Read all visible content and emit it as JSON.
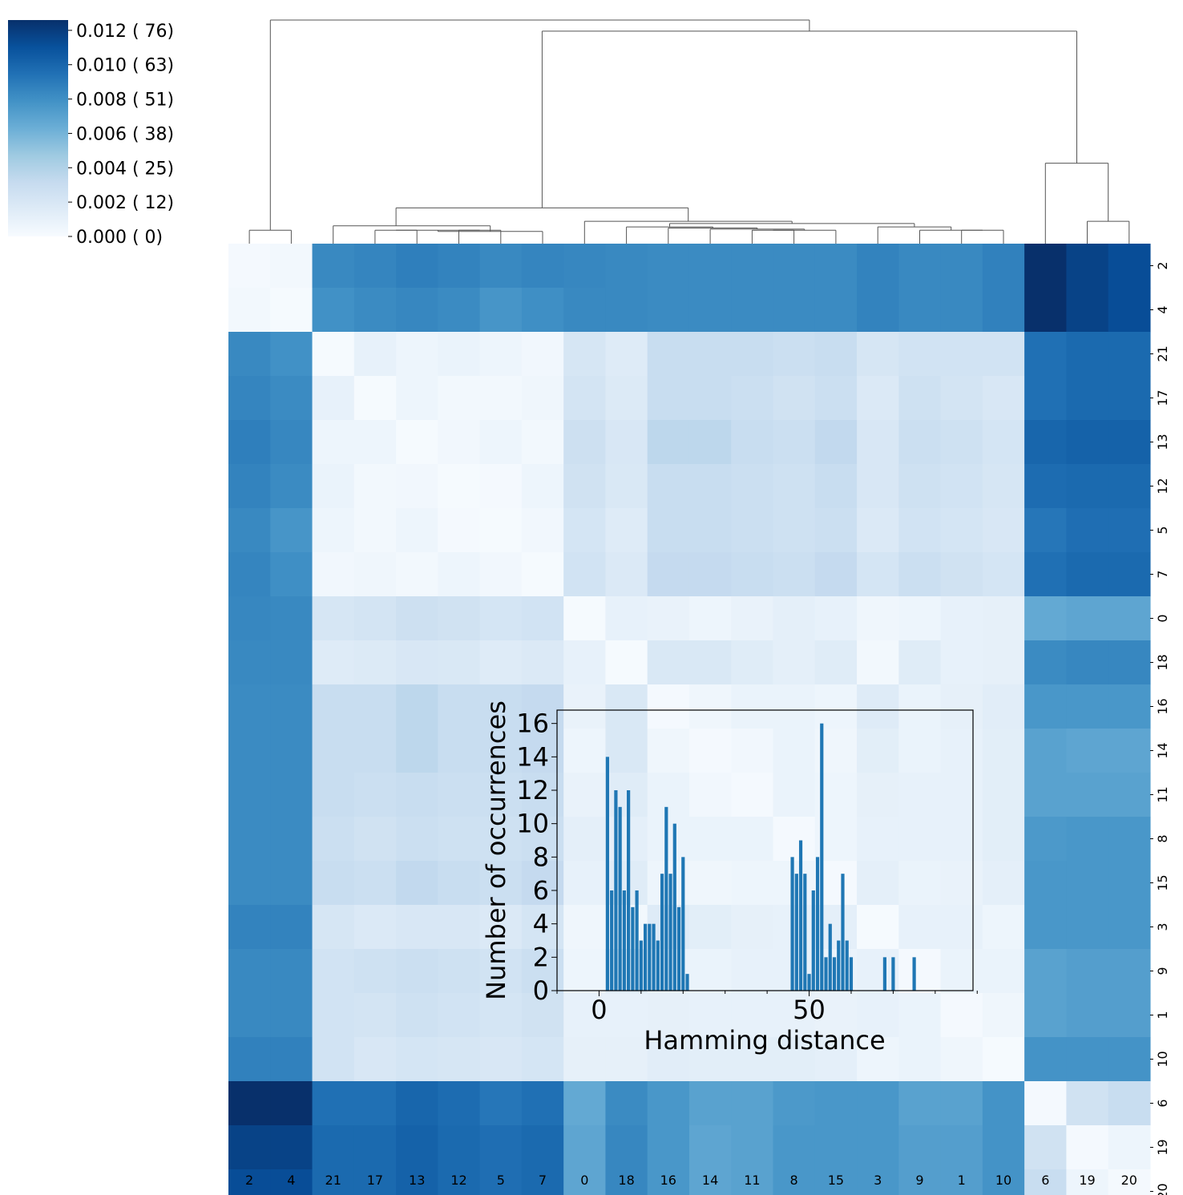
{
  "chart_data": [
    {
      "type": "heatmap",
      "row_labels": [
        "2",
        "4",
        "21",
        "17",
        "13",
        "12",
        "5",
        "7",
        "0",
        "18",
        "16",
        "14",
        "11",
        "8",
        "15",
        "3",
        "9",
        "1",
        "10",
        "6",
        "19",
        "20"
      ],
      "col_labels": [
        "2",
        "4",
        "21",
        "17",
        "13",
        "12",
        "5",
        "7",
        "0",
        "18",
        "16",
        "14",
        "11",
        "8",
        "15",
        "3",
        "9",
        "1",
        "10",
        "6",
        "19",
        "20"
      ],
      "colormap": "Blues",
      "colorbar": {
        "range": [
          0,
          0.0126
        ],
        "tick_values": [
          0,
          0.002,
          0.004,
          0.006,
          0.008,
          0.01,
          0.012
        ],
        "tick_labels": [
          "0.000 (  0)",
          "0.002 ( 12)",
          "0.004 ( 25)",
          "0.006 ( 38)",
          "0.008 ( 51)",
          "0.010 ( 63)",
          "0.012 ( 76)"
        ]
      },
      "dendrogram": "top",
      "values": [
        [
          0.0002,
          0.0003,
          0.0083,
          0.0085,
          0.0088,
          0.0086,
          0.0083,
          0.0085,
          0.0084,
          0.0083,
          0.0082,
          0.0082,
          0.0082,
          0.0082,
          0.0082,
          0.0086,
          0.0083,
          0.0083,
          0.0087,
          0.0126,
          0.0117,
          0.0112
        ],
        [
          0.0003,
          0.0001,
          0.0079,
          0.0082,
          0.0084,
          0.0082,
          0.0077,
          0.008,
          0.0083,
          0.0083,
          0.0082,
          0.0082,
          0.0082,
          0.0082,
          0.0082,
          0.0086,
          0.0083,
          0.0083,
          0.0087,
          0.0126,
          0.0117,
          0.0112
        ],
        [
          0.0083,
          0.0079,
          0.0001,
          0.001,
          0.0006,
          0.0008,
          0.0006,
          0.0004,
          0.0021,
          0.0016,
          0.003,
          0.003,
          0.003,
          0.0028,
          0.003,
          0.0021,
          0.0024,
          0.0024,
          0.0024,
          0.0095,
          0.0098,
          0.0098
        ],
        [
          0.0085,
          0.0082,
          0.001,
          0.0001,
          0.0006,
          0.0003,
          0.0003,
          0.0005,
          0.0023,
          0.0017,
          0.003,
          0.003,
          0.0028,
          0.0025,
          0.0028,
          0.0018,
          0.0026,
          0.0023,
          0.002,
          0.0095,
          0.0098,
          0.0098
        ],
        [
          0.0088,
          0.0084,
          0.0006,
          0.0006,
          0.0001,
          0.0004,
          0.0006,
          0.0003,
          0.0027,
          0.002,
          0.0035,
          0.0035,
          0.003,
          0.0028,
          0.0033,
          0.002,
          0.0028,
          0.0026,
          0.0022,
          0.01,
          0.0102,
          0.0102
        ],
        [
          0.0086,
          0.0082,
          0.0008,
          0.0003,
          0.0004,
          0.0001,
          0.0002,
          0.0006,
          0.0025,
          0.0019,
          0.003,
          0.003,
          0.0028,
          0.0026,
          0.003,
          0.002,
          0.0026,
          0.0024,
          0.0021,
          0.0097,
          0.0098,
          0.0098
        ],
        [
          0.0083,
          0.0077,
          0.0006,
          0.0003,
          0.0006,
          0.0002,
          0.0001,
          0.0004,
          0.0022,
          0.0016,
          0.003,
          0.003,
          0.0028,
          0.0026,
          0.0028,
          0.0018,
          0.0024,
          0.0022,
          0.002,
          0.0092,
          0.0096,
          0.0096
        ],
        [
          0.0085,
          0.008,
          0.0004,
          0.0005,
          0.0003,
          0.0006,
          0.0004,
          0.0001,
          0.0024,
          0.0018,
          0.0032,
          0.0032,
          0.003,
          0.0028,
          0.0032,
          0.0022,
          0.0028,
          0.0025,
          0.0022,
          0.0095,
          0.0098,
          0.0098
        ],
        [
          0.0084,
          0.0083,
          0.0021,
          0.0023,
          0.0027,
          0.0025,
          0.0022,
          0.0024,
          0.0001,
          0.001,
          0.0009,
          0.0006,
          0.0009,
          0.0012,
          0.001,
          0.0005,
          0.0006,
          0.001,
          0.0011,
          0.0066,
          0.0068,
          0.0068
        ],
        [
          0.0083,
          0.0083,
          0.0016,
          0.0017,
          0.002,
          0.0019,
          0.0016,
          0.0018,
          0.001,
          0.0001,
          0.0019,
          0.0019,
          0.0015,
          0.0012,
          0.0015,
          0.0003,
          0.0015,
          0.001,
          0.0011,
          0.0082,
          0.0084,
          0.0084
        ],
        [
          0.0082,
          0.0082,
          0.003,
          0.003,
          0.0035,
          0.003,
          0.003,
          0.0032,
          0.0009,
          0.0019,
          0.0002,
          0.0005,
          0.0008,
          0.0008,
          0.0006,
          0.0016,
          0.0008,
          0.0011,
          0.0014,
          0.0076,
          0.0076,
          0.0076
        ],
        [
          0.0082,
          0.0082,
          0.003,
          0.003,
          0.0035,
          0.003,
          0.003,
          0.0032,
          0.0006,
          0.0019,
          0.0005,
          0.0002,
          0.0004,
          0.0008,
          0.0005,
          0.0013,
          0.0008,
          0.001,
          0.0013,
          0.007,
          0.0068,
          0.0068
        ],
        [
          0.0082,
          0.0082,
          0.003,
          0.0028,
          0.003,
          0.0028,
          0.0028,
          0.003,
          0.0009,
          0.0015,
          0.0008,
          0.0004,
          0.0002,
          0.0008,
          0.0006,
          0.0011,
          0.001,
          0.001,
          0.0013,
          0.007,
          0.007,
          0.007
        ],
        [
          0.0082,
          0.0082,
          0.0028,
          0.0025,
          0.0028,
          0.0026,
          0.0026,
          0.0028,
          0.0012,
          0.0012,
          0.0008,
          0.0008,
          0.0008,
          0.0002,
          0.0006,
          0.001,
          0.001,
          0.001,
          0.0013,
          0.0075,
          0.0076,
          0.0076
        ],
        [
          0.0082,
          0.0082,
          0.003,
          0.0028,
          0.0033,
          0.003,
          0.0028,
          0.0032,
          0.001,
          0.0015,
          0.0006,
          0.0005,
          0.0006,
          0.0006,
          0.0002,
          0.0012,
          0.0008,
          0.0009,
          0.0012,
          0.0076,
          0.0076,
          0.0076
        ],
        [
          0.0086,
          0.0086,
          0.0021,
          0.0018,
          0.002,
          0.002,
          0.0018,
          0.0022,
          0.0005,
          0.0003,
          0.0016,
          0.0013,
          0.0011,
          0.001,
          0.0012,
          0.0001,
          0.001,
          0.001,
          0.0006,
          0.0076,
          0.0076,
          0.0076
        ],
        [
          0.0083,
          0.0083,
          0.0024,
          0.0026,
          0.0028,
          0.0026,
          0.0024,
          0.0028,
          0.0006,
          0.0015,
          0.0008,
          0.0008,
          0.001,
          0.001,
          0.0008,
          0.001,
          0.0002,
          0.0008,
          0.0008,
          0.007,
          0.0072,
          0.0072
        ],
        [
          0.0083,
          0.0083,
          0.0024,
          0.0023,
          0.0026,
          0.0024,
          0.0022,
          0.0025,
          0.001,
          0.001,
          0.0011,
          0.001,
          0.001,
          0.001,
          0.0009,
          0.001,
          0.0008,
          0.0002,
          0.0005,
          0.007,
          0.0072,
          0.0072
        ],
        [
          0.0087,
          0.0087,
          0.0024,
          0.002,
          0.0022,
          0.0021,
          0.002,
          0.0022,
          0.0011,
          0.0011,
          0.0014,
          0.0013,
          0.0013,
          0.0013,
          0.0012,
          0.0006,
          0.0008,
          0.0005,
          0.0001,
          0.0078,
          0.0078,
          0.0078
        ],
        [
          0.0126,
          0.0126,
          0.0095,
          0.0095,
          0.01,
          0.0097,
          0.0092,
          0.0095,
          0.0066,
          0.0082,
          0.0076,
          0.007,
          0.007,
          0.0075,
          0.0076,
          0.0076,
          0.007,
          0.007,
          0.0078,
          0.0002,
          0.0025,
          0.003
        ],
        [
          0.0117,
          0.0117,
          0.0098,
          0.0098,
          0.0102,
          0.0098,
          0.0096,
          0.0098,
          0.0068,
          0.0084,
          0.0076,
          0.0068,
          0.007,
          0.0076,
          0.0076,
          0.0076,
          0.0072,
          0.0072,
          0.0078,
          0.0025,
          0.0002,
          0.0006
        ],
        [
          0.0112,
          0.0112,
          0.0098,
          0.0098,
          0.0102,
          0.0098,
          0.0096,
          0.0098,
          0.0068,
          0.0084,
          0.0076,
          0.0068,
          0.007,
          0.0076,
          0.0076,
          0.0076,
          0.0072,
          0.0072,
          0.0078,
          0.003,
          0.0006,
          0.0002
        ]
      ]
    },
    {
      "type": "bar",
      "xlabel": "Hamming distance",
      "ylabel": "Number of occurrences",
      "xlim": [
        -10,
        89
      ],
      "ylim": [
        0,
        16.8
      ],
      "x_ticks": [
        0,
        50
      ],
      "y_ticks": [
        0,
        2,
        4,
        6,
        8,
        10,
        12,
        14,
        16
      ],
      "x": [
        2,
        3,
        4,
        5,
        6,
        7,
        8,
        9,
        10,
        11,
        12,
        13,
        14,
        15,
        16,
        17,
        18,
        19,
        20,
        21,
        46,
        47,
        48,
        49,
        50,
        51,
        52,
        53,
        54,
        55,
        56,
        57,
        58,
        59,
        60,
        68,
        70,
        75
      ],
      "values": [
        14,
        6,
        12,
        11,
        6,
        12,
        5,
        6,
        3,
        4,
        4,
        4,
        3,
        7,
        11,
        7,
        10,
        5,
        8,
        1,
        8,
        7,
        9,
        7,
        1,
        6,
        8,
        16,
        2,
        4,
        2,
        3,
        7,
        3,
        2,
        2,
        2,
        2
      ],
      "color": "#1f77b4"
    }
  ]
}
